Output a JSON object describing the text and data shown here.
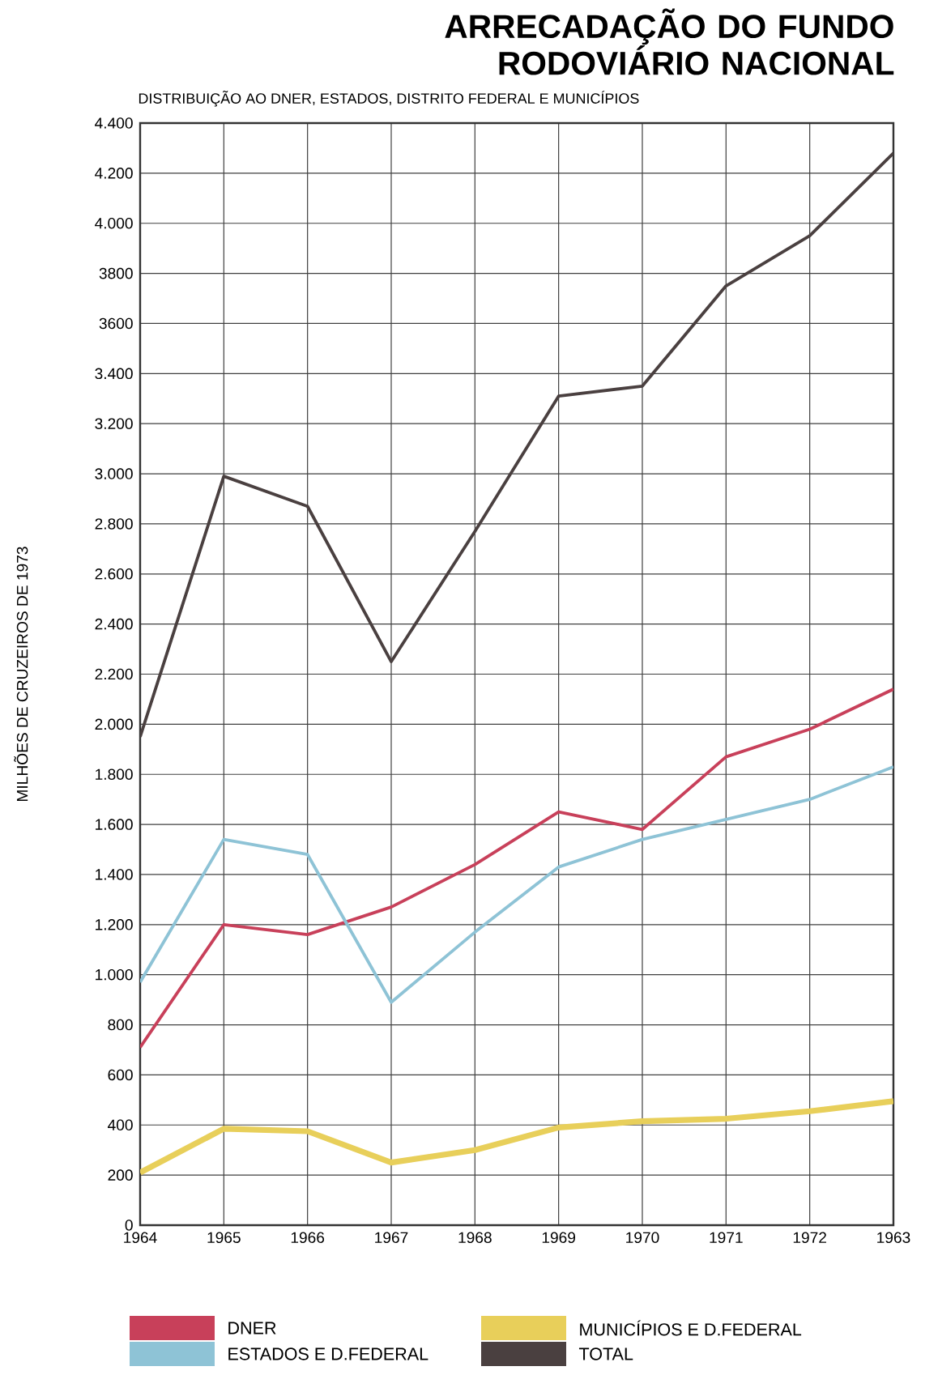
{
  "chart_data": {
    "type": "line",
    "title": "ARRECADAÇÃO DO FUNDO RODOVIÁRIO NACIONAL",
    "subtitle": "DISTRIBUIÇÃO AO DNER, ESTADOS, DISTRITO FEDERAL E MUNICÍPIOS",
    "ylabel": "MILHÕES DE CRUZEIROS DE 1973",
    "categories": [
      "1964",
      "1965",
      "1966",
      "1967",
      "1968",
      "1969",
      "1970",
      "1971",
      "1972",
      "1963"
    ],
    "series": [
      {
        "name": "DNER",
        "color": "#c8405a",
        "values": [
          710,
          1200,
          1160,
          1270,
          1440,
          1650,
          1580,
          1870,
          1980,
          2140
        ]
      },
      {
        "name": "ESTADOS E D.FEDERAL",
        "color": "#8ec3d6",
        "values": [
          970,
          1540,
          1480,
          890,
          1170,
          1430,
          1540,
          1620,
          1700,
          1830
        ]
      },
      {
        "name": "MUNICÍPIOS E D.FEDERAL",
        "color": "#e8cf5a",
        "values": [
          210,
          385,
          375,
          250,
          300,
          390,
          415,
          425,
          455,
          495
        ]
      },
      {
        "name": "TOTAL",
        "color": "#4a4040",
        "values": [
          1950,
          2990,
          2870,
          2250,
          2770,
          3310,
          3350,
          3750,
          3950,
          4280
        ]
      }
    ],
    "ylim": [
      0,
      4400
    ],
    "yticks": [
      0,
      200,
      400,
      600,
      800,
      {
        "value": 1000,
        "label": "1.000"
      },
      {
        "value": 1200,
        "label": "1.200"
      },
      {
        "value": 1400,
        "label": "1.400"
      },
      {
        "value": 1600,
        "label": "1.600"
      },
      {
        "value": 1800,
        "label": "1.800"
      },
      {
        "value": 2000,
        "label": "2.000"
      },
      {
        "value": 2200,
        "label": "2.200"
      },
      {
        "value": 2400,
        "label": "2.400"
      },
      {
        "value": 2600,
        "label": "2.600"
      },
      {
        "value": 2800,
        "label": "2.800"
      },
      {
        "value": 3000,
        "label": "3.000"
      },
      {
        "value": 3200,
        "label": "3.200"
      },
      {
        "value": 3400,
        "label": "3.400"
      },
      {
        "value": 3600,
        "label": "3600"
      },
      {
        "value": 3800,
        "label": "3800"
      },
      {
        "value": 4000,
        "label": "4.000"
      },
      {
        "value": 4200,
        "label": "4.200"
      },
      {
        "value": 4400,
        "label": "4.400"
      }
    ],
    "grid": true,
    "legend": "bottom"
  }
}
